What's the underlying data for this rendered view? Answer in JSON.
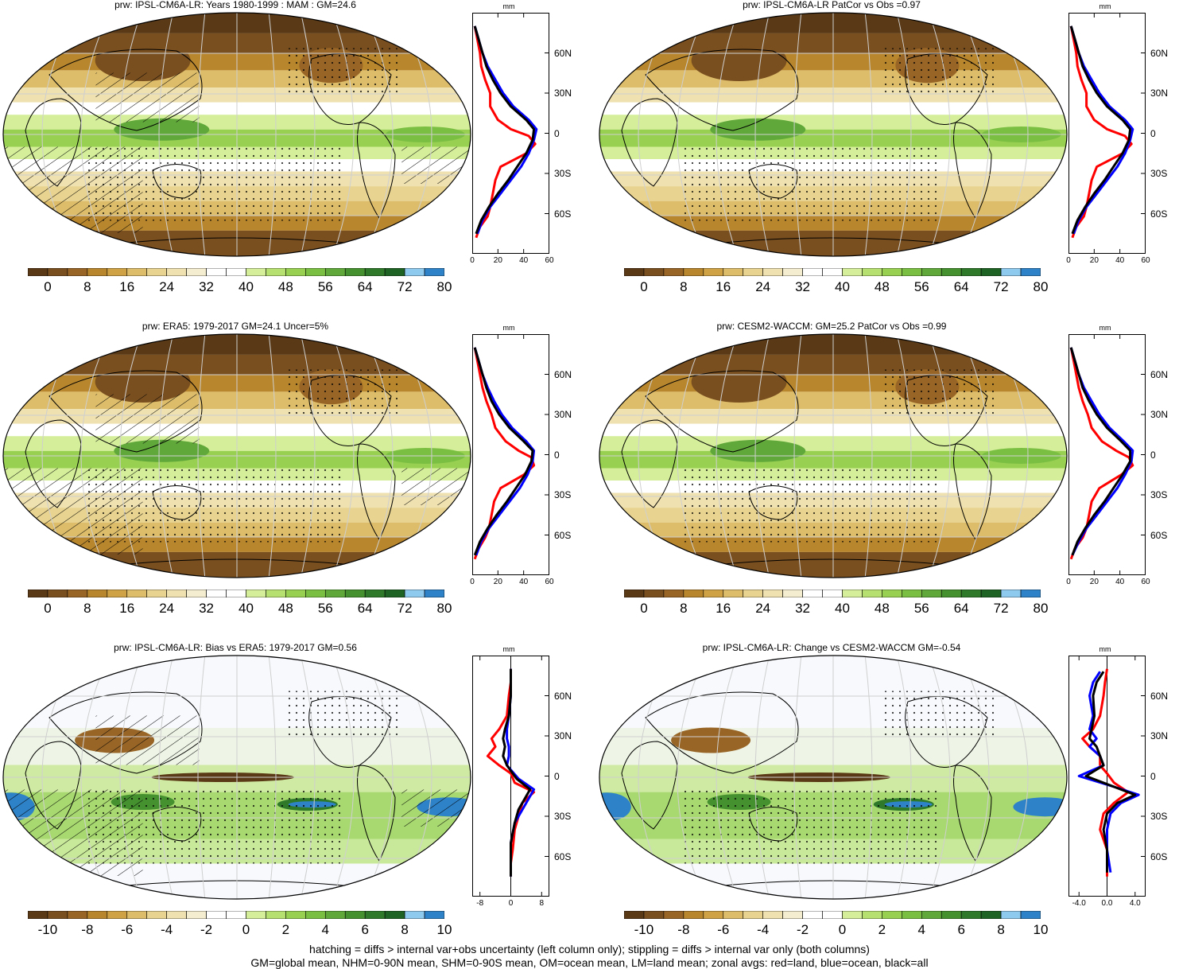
{
  "footer": {
    "line1": "hatching = diffs > internal var+obs uncertainty (left column only); stippling = diffs > internal var only (both columns)",
    "line2": "GM=global mean, NHM=0-90N mean, SHM=0-90S mean, OM=ocean mean, LM=land mean; zonal avgs: red=land, blue=ocean, black=all"
  },
  "colors": {
    "land": "#ff0000",
    "ocean": "#0000ff",
    "all": "#000000",
    "palette": [
      "#5a3a16",
      "#7a4f1f",
      "#986526",
      "#b8862d",
      "#cfa245",
      "#ddbd6a",
      "#e8d490",
      "#efe1b0",
      "#f5edcf",
      "#ffffff",
      "#ffffff",
      "#d4ee9a",
      "#b6e070",
      "#98d052",
      "#7bbf42",
      "#5fa839",
      "#46912f",
      "#2f7a2a",
      "#1f6324",
      "#8ec9ee",
      "#2e82c8"
    ]
  },
  "panels": [
    {
      "title": "prw: IPSL-CM6A-LR: Years 1980-1999 : MAM : GM=24.6",
      "kind": "abs",
      "hatch": true,
      "colorbar": {
        "labels": [
          "0",
          "8",
          "16",
          "24",
          "32",
          "40",
          "48",
          "56",
          "64",
          "72",
          "80"
        ]
      },
      "zonal": {
        "unit": "mm",
        "xticks": [
          "0",
          "20",
          "40",
          "60"
        ],
        "xlim": [
          0,
          60
        ]
      }
    },
    {
      "title": "prw: IPSL-CM6A-LR PatCor vs Obs =0.97",
      "kind": "abs",
      "hatch": false,
      "colorbar": {
        "labels": [
          "0",
          "8",
          "16",
          "24",
          "32",
          "40",
          "48",
          "56",
          "64",
          "72",
          "80"
        ]
      },
      "zonal": {
        "unit": "mm",
        "xticks": [
          "0",
          "20",
          "40",
          "60"
        ],
        "xlim": [
          0,
          60
        ]
      }
    },
    {
      "title": "prw: ERA5: 1979-2017 GM=24.1 Uncer=5%",
      "kind": "abs",
      "hatch": true,
      "colorbar": {
        "labels": [
          "0",
          "8",
          "16",
          "24",
          "32",
          "40",
          "48",
          "56",
          "64",
          "72",
          "80"
        ]
      },
      "zonal": {
        "unit": "mm",
        "xticks": [
          "0",
          "20",
          "40",
          "60"
        ],
        "xlim": [
          0,
          60
        ]
      }
    },
    {
      "title": "prw: CESM2-WACCM: GM=25.2 PatCor vs Obs =0.99",
      "kind": "abs",
      "hatch": false,
      "colorbar": {
        "labels": [
          "0",
          "8",
          "16",
          "24",
          "32",
          "40",
          "48",
          "56",
          "64",
          "72",
          "80"
        ]
      },
      "zonal": {
        "unit": "mm",
        "xticks": [
          "0",
          "20",
          "40",
          "60"
        ],
        "xlim": [
          0,
          60
        ]
      }
    },
    {
      "title": "prw: IPSL-CM6A-LR: Bias vs ERA5: 1979-2017 GM=0.56",
      "kind": "diff",
      "hatch": true,
      "colorbar": {
        "labels": [
          "-10",
          "-8",
          "-6",
          "-4",
          "-2",
          "0",
          "2",
          "4",
          "6",
          "8",
          "10"
        ]
      },
      "zonal": {
        "unit": "mm",
        "xticks": [
          "-8",
          "0",
          "8"
        ],
        "xlim": [
          -10,
          10
        ]
      }
    },
    {
      "title": "prw: IPSL-CM6A-LR: Change vs CESM2-WACCM GM=-0.54",
      "kind": "diff",
      "hatch": false,
      "colorbar": {
        "labels": [
          "-10",
          "-8",
          "-6",
          "-4",
          "-2",
          "0",
          "2",
          "4",
          "6",
          "8",
          "10"
        ]
      },
      "zonal": {
        "unit": "mm",
        "xticks": [
          "-4.0",
          "0.0",
          "4.0"
        ],
        "xlim": [
          -5.5,
          5.5
        ]
      }
    }
  ],
  "lat_labels": [
    "60N",
    "30N",
    "0",
    "30S",
    "60S"
  ],
  "chart_data": [
    {
      "type": "line",
      "title": "prw: IPSL-CM6A-LR: Years 1980-1999 : MAM : GM=24.6",
      "xlabel": "mm",
      "xlim": [
        0,
        60
      ],
      "ylim": [
        -90,
        90
      ],
      "series": [
        {
          "name": "land",
          "x": [
            2,
            4,
            6,
            7,
            10,
            14,
            14,
            20,
            30,
            44,
            49,
            42,
            22,
            18,
            16,
            14,
            12,
            6,
            3
          ],
          "y": [
            80,
            70,
            60,
            50,
            40,
            30,
            20,
            10,
            3,
            -2,
            -8,
            -15,
            -25,
            -35,
            -45,
            -55,
            -62,
            -70,
            -78
          ]
        },
        {
          "name": "ocean",
          "x": [
            2,
            5,
            8,
            12,
            18,
            24,
            32,
            44,
            50,
            48,
            44,
            38,
            30,
            22,
            14,
            8,
            4
          ],
          "y": [
            80,
            70,
            60,
            50,
            40,
            30,
            20,
            10,
            3,
            -5,
            -15,
            -25,
            -35,
            -45,
            -55,
            -65,
            -75
          ]
        },
        {
          "name": "all",
          "x": [
            2,
            5,
            8,
            11,
            16,
            22,
            30,
            42,
            48,
            47,
            42,
            35,
            28,
            20,
            13,
            7,
            3
          ],
          "y": [
            80,
            70,
            60,
            50,
            40,
            30,
            20,
            10,
            3,
            -5,
            -15,
            -25,
            -35,
            -45,
            -55,
            -65,
            -75
          ]
        }
      ]
    },
    {
      "type": "line",
      "title": "prw: IPSL-CM6A-LR PatCor vs Obs =0.97",
      "xlabel": "mm",
      "xlim": [
        0,
        60
      ],
      "ylim": [
        -90,
        90
      ],
      "series": [
        {
          "name": "land",
          "x": [
            2,
            4,
            6,
            7,
            10,
            14,
            14,
            20,
            30,
            44,
            49,
            42,
            22,
            18,
            16,
            14,
            12,
            6,
            3
          ],
          "y": [
            80,
            70,
            60,
            50,
            40,
            30,
            20,
            10,
            3,
            -2,
            -8,
            -15,
            -25,
            -35,
            -45,
            -55,
            -62,
            -70,
            -78
          ]
        },
        {
          "name": "ocean",
          "x": [
            2,
            5,
            8,
            12,
            18,
            24,
            32,
            44,
            50,
            48,
            44,
            38,
            30,
            22,
            14,
            8,
            4
          ],
          "y": [
            80,
            70,
            60,
            50,
            40,
            30,
            20,
            10,
            3,
            -5,
            -15,
            -25,
            -35,
            -45,
            -55,
            -65,
            -75
          ]
        },
        {
          "name": "all",
          "x": [
            2,
            5,
            8,
            11,
            16,
            22,
            30,
            42,
            48,
            47,
            42,
            35,
            28,
            20,
            13,
            7,
            3
          ],
          "y": [
            80,
            70,
            60,
            50,
            40,
            30,
            20,
            10,
            3,
            -5,
            -15,
            -25,
            -35,
            -45,
            -55,
            -65,
            -75
          ]
        }
      ]
    },
    {
      "type": "line",
      "title": "prw: ERA5: 1979-2017 GM=24.1 Uncer=5%",
      "xlabel": "mm",
      "xlim": [
        0,
        60
      ],
      "ylim": [
        -90,
        90
      ],
      "series": [
        {
          "name": "land",
          "x": [
            2,
            4,
            6,
            8,
            11,
            15,
            18,
            26,
            36,
            46,
            48,
            40,
            22,
            17,
            15,
            13,
            10,
            5,
            2
          ],
          "y": [
            80,
            70,
            60,
            50,
            40,
            30,
            20,
            10,
            3,
            -2,
            -8,
            -15,
            -25,
            -35,
            -45,
            -55,
            -62,
            -70,
            -78
          ]
        },
        {
          "name": "ocean",
          "x": [
            2,
            5,
            8,
            12,
            17,
            23,
            31,
            42,
            48,
            47,
            43,
            37,
            29,
            21,
            13,
            7,
            3
          ],
          "y": [
            80,
            70,
            60,
            50,
            40,
            30,
            20,
            10,
            3,
            -5,
            -15,
            -25,
            -35,
            -45,
            -55,
            -65,
            -75
          ]
        },
        {
          "name": "all",
          "x": [
            2,
            5,
            8,
            11,
            15,
            21,
            29,
            40,
            47,
            46,
            41,
            34,
            27,
            19,
            12,
            6,
            2
          ],
          "y": [
            80,
            70,
            60,
            50,
            40,
            30,
            20,
            10,
            3,
            -5,
            -15,
            -25,
            -35,
            -45,
            -55,
            -65,
            -75
          ]
        }
      ]
    },
    {
      "type": "line",
      "title": "prw: CESM2-WACCM: GM=25.2 PatCor vs Obs =0.99",
      "xlabel": "mm",
      "xlim": [
        0,
        60
      ],
      "ylim": [
        -90,
        90
      ],
      "series": [
        {
          "name": "land",
          "x": [
            2,
            4,
            6,
            8,
            11,
            15,
            18,
            26,
            37,
            47,
            50,
            41,
            24,
            18,
            16,
            14,
            11,
            5,
            2
          ],
          "y": [
            80,
            70,
            60,
            50,
            40,
            30,
            20,
            10,
            3,
            -2,
            -8,
            -15,
            -25,
            -35,
            -45,
            -55,
            -62,
            -70,
            -78
          ]
        },
        {
          "name": "ocean",
          "x": [
            2,
            5,
            8,
            12,
            18,
            24,
            32,
            43,
            50,
            49,
            44,
            38,
            30,
            22,
            14,
            8,
            3
          ],
          "y": [
            80,
            70,
            60,
            50,
            40,
            30,
            20,
            10,
            3,
            -5,
            -15,
            -25,
            -35,
            -45,
            -55,
            -65,
            -75
          ]
        },
        {
          "name": "all",
          "x": [
            2,
            5,
            8,
            11,
            16,
            22,
            30,
            41,
            48,
            48,
            42,
            35,
            28,
            20,
            13,
            7,
            3
          ],
          "y": [
            80,
            70,
            60,
            50,
            40,
            30,
            20,
            10,
            3,
            -5,
            -15,
            -25,
            -35,
            -45,
            -55,
            -65,
            -75
          ]
        }
      ]
    },
    {
      "type": "line",
      "title": "prw: IPSL-CM6A-LR: Bias vs ERA5: 1979-2017 GM=0.56",
      "xlabel": "mm",
      "xlim": [
        -10,
        10
      ],
      "ylim": [
        -90,
        90
      ],
      "series": [
        {
          "name": "land",
          "x": [
            0,
            0,
            -0.5,
            -1,
            -3,
            -5,
            -4,
            -6,
            -3,
            0,
            1,
            6,
            3,
            2,
            1,
            0.5,
            0,
            0
          ],
          "y": [
            80,
            70,
            60,
            45,
            35,
            28,
            22,
            15,
            8,
            2,
            -5,
            -12,
            -20,
            -30,
            -40,
            -55,
            -65,
            -75
          ]
        },
        {
          "name": "ocean",
          "x": [
            0,
            0,
            0,
            -0.5,
            -1,
            -1,
            -0.5,
            -0.5,
            -1,
            2,
            6,
            5,
            3,
            1,
            0,
            0,
            0
          ],
          "y": [
            80,
            70,
            60,
            45,
            35,
            28,
            22,
            15,
            8,
            -2,
            -10,
            -15,
            -25,
            -35,
            -50,
            -65,
            -75
          ]
        },
        {
          "name": "all",
          "x": [
            0,
            0,
            0,
            -0.5,
            -1.5,
            -2,
            -1.5,
            -2,
            -1,
            1.5,
            5,
            4,
            2,
            1,
            0,
            0,
            0
          ],
          "y": [
            80,
            70,
            60,
            45,
            35,
            28,
            22,
            15,
            8,
            -2,
            -10,
            -15,
            -25,
            -35,
            -50,
            -65,
            -75
          ]
        }
      ]
    },
    {
      "type": "line",
      "title": "prw: IPSL-CM6A-LR: Change vs CESM2-WACCM GM=-0.54",
      "xlabel": "mm",
      "xlim": [
        -5.5,
        5.5
      ],
      "ylim": [
        -90,
        90
      ],
      "series": [
        {
          "name": "land",
          "x": [
            0,
            -0.3,
            -0.5,
            -1,
            -2,
            -3.5,
            -2.5,
            -1,
            -1,
            0,
            1,
            3,
            1,
            -0.5,
            -1,
            0,
            0,
            0
          ],
          "y": [
            80,
            70,
            60,
            45,
            35,
            28,
            22,
            15,
            8,
            2,
            -5,
            -12,
            -20,
            -28,
            -40,
            -55,
            -65,
            -75
          ]
        },
        {
          "name": "ocean",
          "x": [
            -1,
            -2,
            -2.5,
            -2,
            -2.5,
            -1.5,
            -2.5,
            -1,
            -0.5,
            -4,
            1,
            4.5,
            2,
            0.5,
            0,
            0,
            0.5
          ],
          "y": [
            78,
            70,
            60,
            45,
            35,
            28,
            22,
            15,
            8,
            0,
            -8,
            -14,
            -20,
            -28,
            -40,
            -55,
            -72
          ]
        },
        {
          "name": "all",
          "x": [
            -0.5,
            -1.5,
            -2,
            -1.8,
            -2.2,
            -2.5,
            -1.5,
            -1,
            -0.5,
            -3,
            1,
            4,
            1.5,
            0,
            -0.5,
            0,
            0
          ],
          "y": [
            78,
            70,
            60,
            45,
            35,
            28,
            22,
            15,
            8,
            0,
            -8,
            -14,
            -20,
            -28,
            -40,
            -55,
            -72
          ]
        }
      ]
    }
  ]
}
